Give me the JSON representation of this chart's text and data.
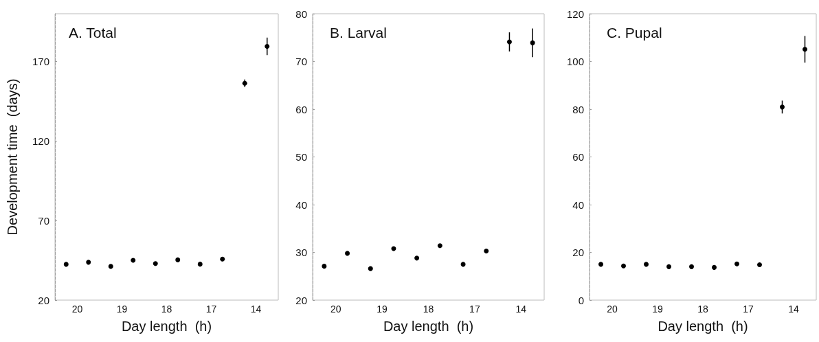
{
  "chart_data": [
    {
      "type": "scatter",
      "title": "A. Total",
      "xlabel": "Day length  (h)",
      "ylabel": "Development time  (days)",
      "categories": [
        "20",
        "19",
        "18",
        "17",
        "14"
      ],
      "ylim": [
        20,
        200
      ],
      "yticks": [
        20,
        70,
        120,
        170
      ],
      "grid": false,
      "marker": "circle",
      "series": [
        {
          "color": "#000000",
          "values": [
            42.5,
            41.2,
            43,
            42.6,
            156.3
          ],
          "errors": [
            null,
            null,
            null,
            null,
            2.4
          ]
        },
        {
          "color": "#000000",
          "values": [
            43.8,
            45,
            45.3,
            45.8,
            179.5
          ],
          "errors": [
            null,
            null,
            null,
            null,
            5.5
          ]
        }
      ]
    },
    {
      "type": "scatter",
      "title": "B. Larval",
      "xlabel": "Day length  (h)",
      "categories": [
        "20",
        "19",
        "18",
        "17",
        "14"
      ],
      "ylim": [
        20,
        80
      ],
      "yticks": [
        20,
        30,
        40,
        50,
        60,
        70,
        80
      ],
      "grid": false,
      "marker": "circle",
      "series": [
        {
          "color": "#000000",
          "values": [
            27.1,
            26.6,
            28.8,
            27.5,
            74.1
          ],
          "errors": [
            null,
            null,
            null,
            null,
            2
          ]
        },
        {
          "color": "#000000",
          "values": [
            29.8,
            30.8,
            31.4,
            30.3,
            73.9
          ],
          "errors": [
            null,
            null,
            null,
            null,
            3
          ]
        }
      ]
    },
    {
      "type": "scatter",
      "title": "C. Pupal",
      "xlabel": "Day length  (h)",
      "categories": [
        "20",
        "19",
        "18",
        "17",
        "14"
      ],
      "ylim": [
        0,
        120
      ],
      "yticks": [
        0,
        20,
        40,
        60,
        80,
        100,
        120
      ],
      "grid": false,
      "marker": "circle",
      "series": [
        {
          "color": "#000000",
          "values": [
            15,
            15,
            14,
            15.2,
            80.9
          ],
          "errors": [
            null,
            null,
            null,
            null,
            2.7
          ]
        },
        {
          "color": "#000000",
          "values": [
            14.3,
            14,
            13.7,
            14.8,
            105.1
          ],
          "errors": [
            null,
            null,
            null,
            null,
            5.6
          ]
        }
      ]
    }
  ]
}
